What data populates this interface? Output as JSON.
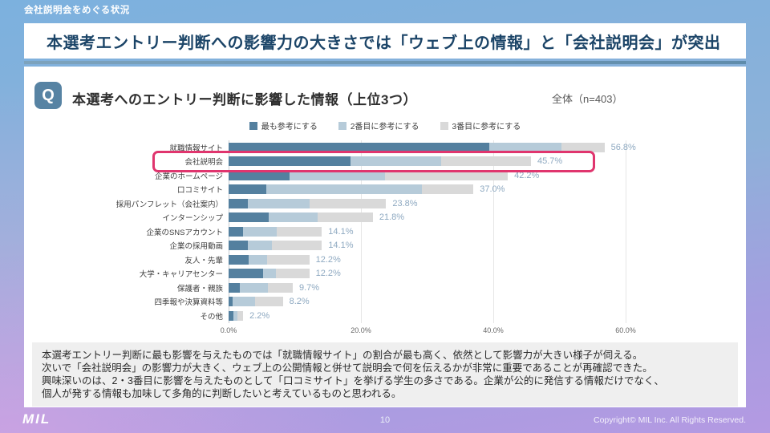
{
  "header": {
    "kicker": "会社説明会をめぐる状況",
    "headline": "本選考エントリー判断への影響力の大きさでは「ウェブ上の情報」と「会社説明会」が突出"
  },
  "question": {
    "badge": "Q",
    "title": "本選考へのエントリー判断に影響した情報（上位3つ）",
    "sample_label": "全体（n=403）"
  },
  "chart_data": {
    "type": "bar",
    "orientation": "horizontal",
    "stacked": true,
    "categories": [
      "就職情報サイト",
      "会社説明会",
      "企業のホームページ",
      "口コミサイト",
      "採用パンフレット（会社案内）",
      "インターンシップ",
      "企業のSNSアカウント",
      "企業の採用動画",
      "友人・先輩",
      "大学・キャリアセンター",
      "保護者・親族",
      "四季報や決算資料等",
      "その他"
    ],
    "series": [
      {
        "name": "最も参考にする",
        "color": "#54809f",
        "values": [
          39.4,
          18.4,
          9.2,
          5.7,
          2.9,
          6.1,
          2.2,
          2.9,
          3.0,
          5.2,
          1.7,
          0.6,
          0.7
        ]
      },
      {
        "name": "2番目に参考にする",
        "color": "#b6cbd9",
        "values": [
          10.9,
          13.7,
          14.4,
          23.5,
          9.3,
          7.3,
          5.1,
          3.7,
          2.8,
          2.0,
          4.3,
          3.4,
          0.6
        ]
      },
      {
        "name": "3番目に参考にする",
        "color": "#d9d9d9",
        "values": [
          6.5,
          13.6,
          18.6,
          7.8,
          11.6,
          8.4,
          6.8,
          7.5,
          6.4,
          5.0,
          3.7,
          4.2,
          0.9
        ]
      }
    ],
    "totals_labels": [
      "56.8%",
      "45.7%",
      "42.2%",
      "37.0%",
      "23.8%",
      "21.8%",
      "14.1%",
      "14.1%",
      "12.2%",
      "12.2%",
      "9.7%",
      "8.2%",
      "2.2%"
    ],
    "x_ticks": [
      "0.0%",
      "20.0%",
      "40.0%",
      "60.0%"
    ],
    "x_tick_values": [
      0,
      20,
      40,
      60
    ],
    "xlim": [
      0,
      70
    ],
    "grid": "vertical",
    "legend_position": "top",
    "highlighted_category": "会社説明会",
    "highlight_color": "#e0356e"
  },
  "notes": {
    "lines": [
      "本選考エントリー判断に最も影響を与えたものでは「就職情報サイト」の割合が最も高く、依然として影響力が大きい様子が伺える。",
      "次いで「会社説明会」の影響力が大きく、ウェブ上の公開情報と併せて説明会で何を伝えるかが非常に重要であることが再確認できた。",
      "興味深いのは、2・3番目に影響を与えたものとして「口コミサイト」を挙げる学生の多さである。企業が公的に発信する情報だけでなく、",
      "個人が発する情報も加味して多角的に判断したいと考えているものと思われる。"
    ]
  },
  "footer": {
    "logo": "MIL",
    "page_number": "10",
    "copyright": "Copyright© MIL Inc. All Rights Reserved."
  }
}
